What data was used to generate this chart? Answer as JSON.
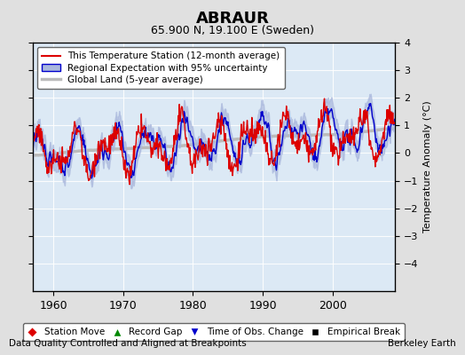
{
  "title": "ABRAUR",
  "subtitle": "65.900 N, 19.100 E (Sweden)",
  "ylabel": "Temperature Anomaly (°C)",
  "xlabel_note": "Data Quality Controlled and Aligned at Breakpoints",
  "credit": "Berkeley Earth",
  "ylim": [
    -5,
    4
  ],
  "xlim": [
    1957,
    2009
  ],
  "xticks": [
    1960,
    1970,
    1980,
    1990,
    2000
  ],
  "yticks": [
    -4,
    -3,
    -2,
    -1,
    0,
    1,
    2,
    3,
    4
  ],
  "bg_color": "#e8e8e8",
  "plot_bg_color": "#dce9f5",
  "grid_color": "#ffffff",
  "red_color": "#dd0000",
  "blue_color": "#0000cc",
  "blue_fill_color": "#aab8dd",
  "gray_color": "#bbbbbb",
  "legend_items": [
    {
      "label": "This Temperature Station (12-month average)",
      "color": "#dd0000",
      "lw": 1.5
    },
    {
      "label": "Regional Expectation with 95% uncertainty",
      "color": "#0000cc",
      "lw": 1.5
    },
    {
      "label": "Global Land (5-year average)",
      "color": "#bbbbbb",
      "lw": 2.5
    }
  ],
  "bottom_legend": [
    {
      "label": "Station Move",
      "color": "#dd0000",
      "marker": "D"
    },
    {
      "label": "Record Gap",
      "color": "#008800",
      "marker": "^"
    },
    {
      "label": "Time of Obs. Change",
      "color": "#0000cc",
      "marker": "v"
    },
    {
      "label": "Empirical Break",
      "color": "#000000",
      "marker": "s"
    }
  ]
}
